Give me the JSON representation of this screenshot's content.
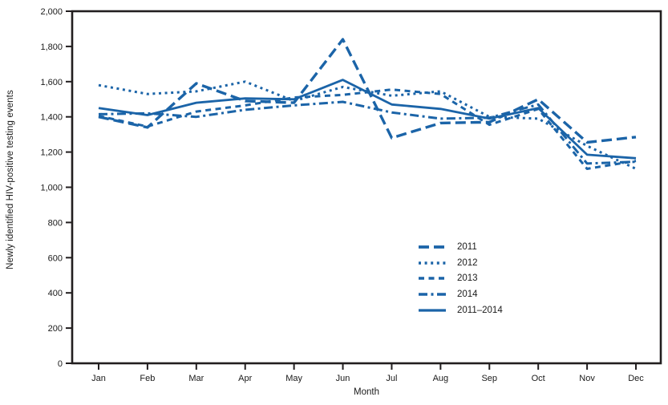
{
  "figure": {
    "y_axis_title": "Newly identified HIV-positive testing events",
    "x_axis_title": "Month"
  },
  "colors": {
    "line_blue": "#1b64a8",
    "axis_black": "#221e1f",
    "text_black": "#1a1a1a"
  },
  "chart_data": {
    "type": "line",
    "title": "",
    "xlabel": "Month",
    "ylabel": "Newly identified HIV-positive testing events",
    "ylim": [
      0,
      2000
    ],
    "y_tick_step": 200,
    "y_tick_labels": [
      "0",
      "200",
      "400",
      "600",
      "800",
      "1,000",
      "1,200",
      "1,400",
      "1,600",
      "1,800",
      "2,000"
    ],
    "grid": false,
    "legend_position": "inside-right-middle",
    "categories": [
      "Jan",
      "Feb",
      "Mar",
      "Apr",
      "May",
      "Jun",
      "Jul",
      "Aug",
      "Sep",
      "Oct",
      "Nov",
      "Dec"
    ],
    "series": [
      {
        "name": "2011",
        "dash": "long-dash",
        "values": [
          1400,
          1340,
          1590,
          1490,
          1480,
          1840,
          1280,
          1365,
          1370,
          1500,
          1255,
          1285
        ]
      },
      {
        "name": "2012",
        "dash": "dot",
        "values": [
          1580,
          1530,
          1545,
          1600,
          1490,
          1570,
          1520,
          1545,
          1400,
          1390,
          1235,
          1105
        ]
      },
      {
        "name": "2013",
        "dash": "dash",
        "values": [
          1405,
          1345,
          1430,
          1465,
          1510,
          1525,
          1555,
          1530,
          1355,
          1445,
          1105,
          1150
        ]
      },
      {
        "name": "2014",
        "dash": "dash-dot",
        "values": [
          1415,
          1420,
          1400,
          1440,
          1465,
          1485,
          1425,
          1390,
          1395,
          1470,
          1135,
          1145
        ]
      },
      {
        "name": "2011–2014",
        "dash": "solid",
        "values": [
          1450,
          1410,
          1480,
          1505,
          1500,
          1610,
          1470,
          1445,
          1390,
          1450,
          1185,
          1165
        ]
      }
    ]
  }
}
